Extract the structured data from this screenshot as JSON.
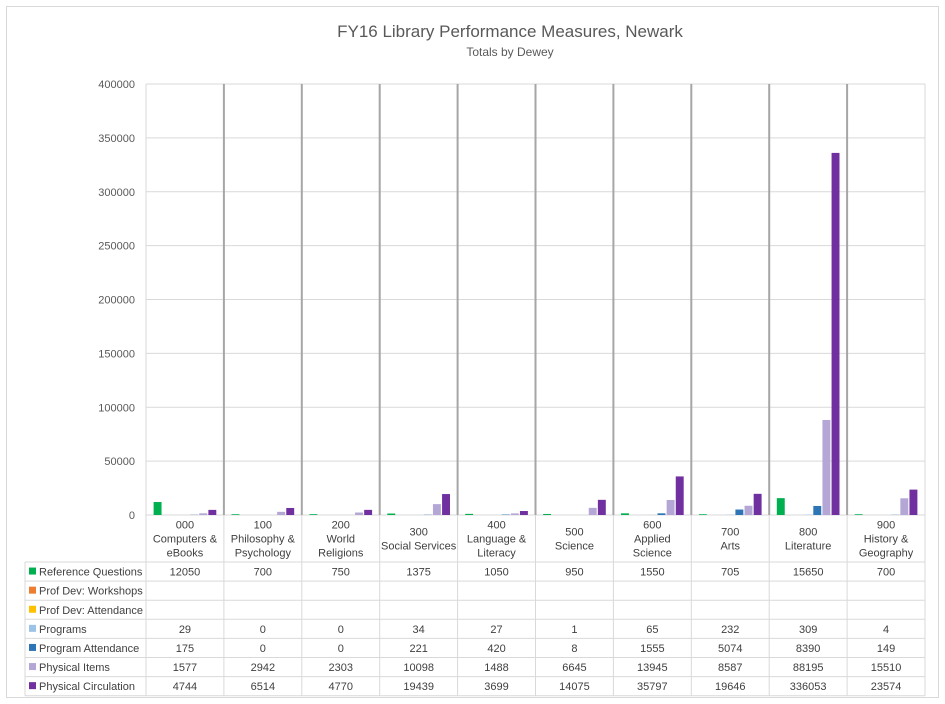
{
  "chart_data": {
    "type": "bar",
    "title": "FY16 Library Performance Measures, Newark",
    "subtitle": "Totals by Dewey",
    "ylim": [
      0,
      400000
    ],
    "yticks": [
      0,
      50000,
      100000,
      150000,
      200000,
      250000,
      300000,
      350000,
      400000
    ],
    "grid": true,
    "legend": "data-table",
    "categories": [
      [
        "000",
        "Computers &",
        "eBooks"
      ],
      [
        "100",
        "Philosophy &",
        "Psychology"
      ],
      [
        "200",
        "World",
        "Religions"
      ],
      [
        "300",
        "Social Services"
      ],
      [
        "400",
        "Language &",
        "Literacy"
      ],
      [
        "500",
        "Science"
      ],
      [
        "600",
        "Applied",
        "Science"
      ],
      [
        "700",
        "Arts"
      ],
      [
        "800",
        "Literature"
      ],
      [
        "900",
        "History &",
        "Geography"
      ]
    ],
    "series": [
      {
        "name": "Reference Questions",
        "color": "#00b050",
        "values": [
          12050,
          700,
          750,
          1375,
          1050,
          950,
          1550,
          705,
          15650,
          700
        ]
      },
      {
        "name": "Prof Dev: Workshops",
        "color": "#ed7d31",
        "values": [
          null,
          null,
          null,
          null,
          null,
          null,
          null,
          null,
          null,
          null
        ]
      },
      {
        "name": "Prof Dev: Attendance",
        "color": "#ffc000",
        "values": [
          null,
          null,
          null,
          null,
          null,
          null,
          null,
          null,
          null,
          null
        ]
      },
      {
        "name": "Programs",
        "color": "#9dc3e6",
        "values": [
          29,
          0,
          0,
          34,
          27,
          1,
          65,
          232,
          309,
          4
        ]
      },
      {
        "name": "Program Attendance",
        "color": "#2e75b6",
        "values": [
          175,
          0,
          0,
          221,
          420,
          8,
          1555,
          5074,
          8390,
          149
        ]
      },
      {
        "name": "Physical Items",
        "color": "#b4a7d6",
        "values": [
          1577,
          2942,
          2303,
          10098,
          1488,
          6645,
          13945,
          8587,
          88195,
          15510
        ]
      },
      {
        "name": "Physical Circulation",
        "color": "#7030a0",
        "values": [
          4744,
          6514,
          4770,
          19439,
          3699,
          14075,
          35797,
          19646,
          336053,
          23574
        ]
      }
    ]
  }
}
